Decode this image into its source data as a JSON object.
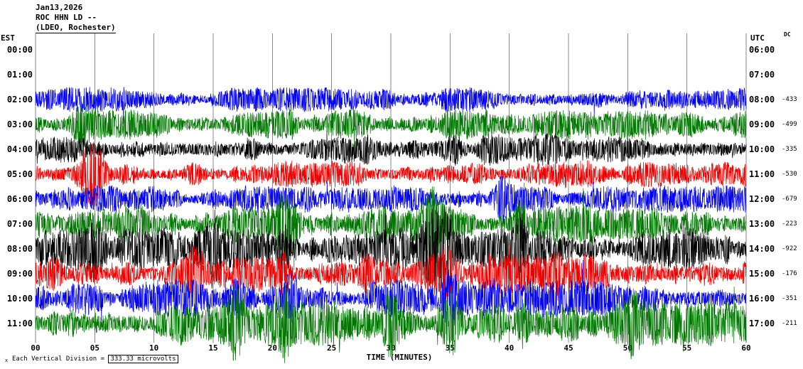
{
  "header": {
    "date": "Jan13,2026",
    "station": "ROC HHN LD --",
    "location": "(LDEO, Rochester)"
  },
  "axes": {
    "left_label": "EST",
    "right_label": "UTC",
    "dc_label": "DC",
    "x_label": "TIME (MINUTES)",
    "x_ticks": [
      "00",
      "05",
      "10",
      "15",
      "20",
      "25",
      "30",
      "35",
      "40",
      "45",
      "50",
      "55",
      "60"
    ],
    "left_times": [
      "00:00",
      "01:00",
      "02:00",
      "03:00",
      "04:00",
      "05:00",
      "06:00",
      "07:00",
      "08:00",
      "09:00",
      "10:00",
      "11:00"
    ],
    "right_times": [
      "06:00",
      "07:00",
      "08:00",
      "09:00",
      "10:00",
      "11:00",
      "12:00",
      "13:00",
      "14:00",
      "15:00",
      "16:00",
      "17:00"
    ]
  },
  "footer": {
    "corner": "x",
    "note_prefix": "Each Vertical Division =",
    "note_value": "333.33 microvolts"
  },
  "colors": {
    "blue": "#0000ee",
    "green": "#007700",
    "black": "#000000",
    "red": "#ee0000",
    "grid": "#888888"
  },
  "chart_data": {
    "type": "line",
    "subtype": "seismogram-helicorder",
    "title": "ROC HHN LD -- (LDEO, Rochester) Jan13,2026",
    "xlabel": "TIME (MINUTES)",
    "x_range_minutes": [
      0,
      60
    ],
    "x_tick_step": 5,
    "grid": "vertical-only",
    "vertical_division_microvolts": 333.33,
    "rows": [
      {
        "est": "02:00",
        "utc": "08:00",
        "dc": -433,
        "color": "blue",
        "amp": 10,
        "spikes": []
      },
      {
        "est": "03:00",
        "utc": "09:00",
        "dc": -499,
        "color": "green",
        "amp": 12,
        "spikes": [
          {
            "t": 4,
            "k": 1.2,
            "w": 0.7
          }
        ]
      },
      {
        "est": "04:00",
        "utc": "10:00",
        "dc": -335,
        "color": "black",
        "amp": 13,
        "spikes": []
      },
      {
        "est": "05:00",
        "utc": "11:00",
        "dc": -530,
        "color": "red",
        "amp": 11,
        "spikes": [
          {
            "t": 4.8,
            "k": 3.4,
            "w": 1.1
          }
        ]
      },
      {
        "est": "06:00",
        "utc": "12:00",
        "dc": -679,
        "color": "blue",
        "amp": 11,
        "spikes": [
          {
            "t": 39.5,
            "k": 1.8,
            "w": 0.5
          }
        ]
      },
      {
        "est": "07:00",
        "utc": "13:00",
        "dc": -223,
        "color": "green",
        "amp": 15,
        "spikes": [
          {
            "t": 21,
            "k": 1.8,
            "w": 0.6
          },
          {
            "t": 33.5,
            "k": 2.0,
            "w": 0.8
          },
          {
            "t": 41,
            "k": 1.6,
            "w": 0.5
          }
        ]
      },
      {
        "est": "08:00",
        "utc": "14:00",
        "dc": -922,
        "color": "black",
        "amp": 17,
        "spikes": [
          {
            "t": 5,
            "k": 1.6,
            "w": 0.6
          },
          {
            "t": 15,
            "k": 1.8,
            "w": 0.7
          },
          {
            "t": 21,
            "k": 1.6,
            "w": 0.5
          },
          {
            "t": 34,
            "k": 2.2,
            "w": 1.2
          },
          {
            "t": 41,
            "k": 1.5,
            "w": 0.5
          }
        ]
      },
      {
        "est": "09:00",
        "utc": "15:00",
        "dc": -176,
        "color": "red",
        "amp": 16,
        "spikes": [
          {
            "t": 13.5,
            "k": 1.8,
            "w": 0.8
          },
          {
            "t": 21,
            "k": 1.5,
            "w": 0.5
          },
          {
            "t": 35,
            "k": 1.6,
            "w": 0.8
          },
          {
            "t": 44,
            "k": 1.4,
            "w": 0.5
          }
        ]
      },
      {
        "est": "10:00",
        "utc": "16:00",
        "dc": -351,
        "color": "blue",
        "amp": 15,
        "spikes": [
          {
            "t": 17,
            "k": 1.5,
            "w": 0.6
          },
          {
            "t": 21.5,
            "k": 1.8,
            "w": 0.7
          },
          {
            "t": 35,
            "k": 1.5,
            "w": 0.6
          }
        ]
      },
      {
        "est": "11:00",
        "utc": "17:00",
        "dc": -211,
        "color": "green",
        "amp": 18,
        "spikes": [
          {
            "t": 17,
            "k": 1.6,
            "w": 0.6
          },
          {
            "t": 21,
            "k": 1.5,
            "w": 0.5
          },
          {
            "t": 30,
            "k": 1.8,
            "w": 0.7
          },
          {
            "t": 35,
            "k": 1.7,
            "w": 0.8
          },
          {
            "t": 41,
            "k": 1.5,
            "w": 0.5
          },
          {
            "t": 50.5,
            "k": 1.6,
            "w": 0.5
          }
        ]
      }
    ]
  }
}
